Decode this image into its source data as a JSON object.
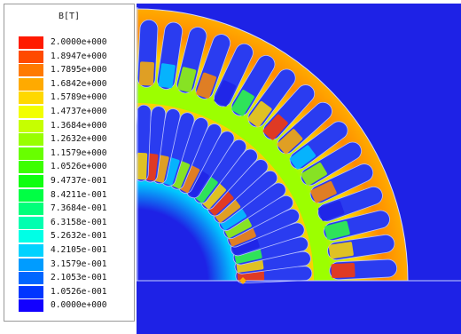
{
  "legend": {
    "title": "B[T]",
    "entries": [
      {
        "label": "2.0000e+000",
        "color": "#ff1a00"
      },
      {
        "label": "1.8947e+000",
        "color": "#ff4a00"
      },
      {
        "label": "1.7895e+000",
        "color": "#ff7a00"
      },
      {
        "label": "1.6842e+000",
        "color": "#ffaa00"
      },
      {
        "label": "1.5789e+000",
        "color": "#ffd800"
      },
      {
        "label": "1.4737e+000",
        "color": "#f2ff00"
      },
      {
        "label": "1.3684e+000",
        "color": "#c6ff00"
      },
      {
        "label": "1.2632e+000",
        "color": "#98ff00"
      },
      {
        "label": "1.1579e+000",
        "color": "#68ff00"
      },
      {
        "label": "1.0526e+000",
        "color": "#3cff00"
      },
      {
        "label": "9.4737e-001",
        "color": "#10ff10"
      },
      {
        "label": "8.4211e-001",
        "color": "#00ff44"
      },
      {
        "label": "7.3684e-001",
        "color": "#00ff7a"
      },
      {
        "label": "6.3158e-001",
        "color": "#00ffb0"
      },
      {
        "label": "5.2632e-001",
        "color": "#00ffe6"
      },
      {
        "label": "4.2105e-001",
        "color": "#00d2ff"
      },
      {
        "label": "3.1579e-001",
        "color": "#009cff"
      },
      {
        "label": "2.1053e-001",
        "color": "#0066ff"
      },
      {
        "label": "1.0526e-001",
        "color": "#0036ff"
      },
      {
        "label": "0.0000e+000",
        "color": "#1200ff"
      }
    ]
  },
  "plot": {
    "background_color": "#1e22e6"
  }
}
